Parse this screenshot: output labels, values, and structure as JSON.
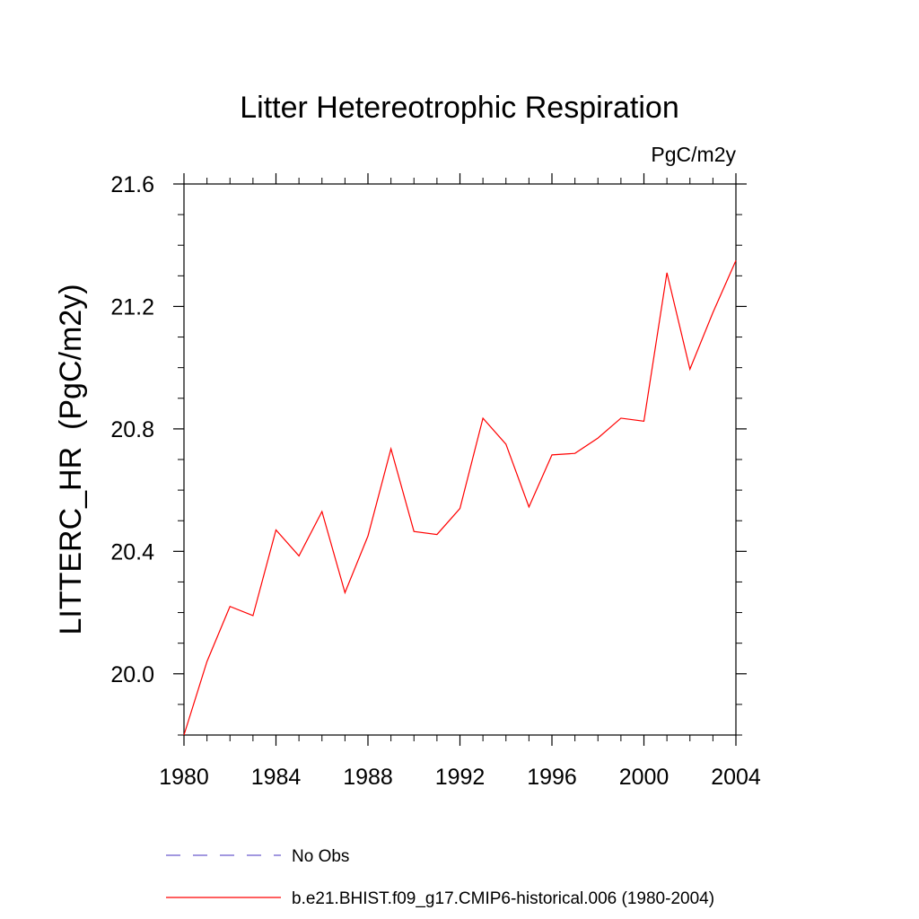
{
  "chart_data": {
    "type": "line",
    "title": "Litter Hetereotrophic Respiration",
    "units_label": "PgC/m2y",
    "ylabel": "LITTERC_HR  (PgC/m2y)",
    "xlabel": "",
    "xlim": [
      1980,
      2004
    ],
    "ylim": [
      19.8,
      21.6
    ],
    "x_ticks": [
      1980,
      1984,
      1988,
      1992,
      1996,
      2000,
      2004
    ],
    "x_tick_labels": [
      "1980",
      "1984",
      "1988",
      "1992",
      "1996",
      "2000",
      "2004"
    ],
    "y_ticks": [
      20.0,
      20.4,
      20.8,
      21.2,
      21.6
    ],
    "y_tick_labels": [
      "20.0",
      "20.4",
      "20.8",
      "21.2",
      "21.6"
    ],
    "grid": false,
    "legend_position": "bottom",
    "series": [
      {
        "name": "b.e21.BHIST.f09_g17.CMIP6-historical.006 (1980-2004)",
        "color": "#ff0000",
        "style": "solid",
        "x": [
          1980,
          1981,
          1982,
          1983,
          1984,
          1985,
          1986,
          1987,
          1988,
          1989,
          1990,
          1991,
          1992,
          1993,
          1994,
          1995,
          1996,
          1997,
          1998,
          1999,
          2000,
          2001,
          2002,
          2003,
          2004
        ],
        "values": [
          19.8,
          20.04,
          20.22,
          20.19,
          20.47,
          20.385,
          20.53,
          20.265,
          20.45,
          20.735,
          20.465,
          20.455,
          20.54,
          20.835,
          20.75,
          20.545,
          20.715,
          20.72,
          20.77,
          20.835,
          20.825,
          21.31,
          20.995,
          21.18,
          21.35
        ]
      },
      {
        "name": "No Obs",
        "color": "#6a5acd",
        "style": "dashed",
        "x": [],
        "values": []
      }
    ]
  }
}
